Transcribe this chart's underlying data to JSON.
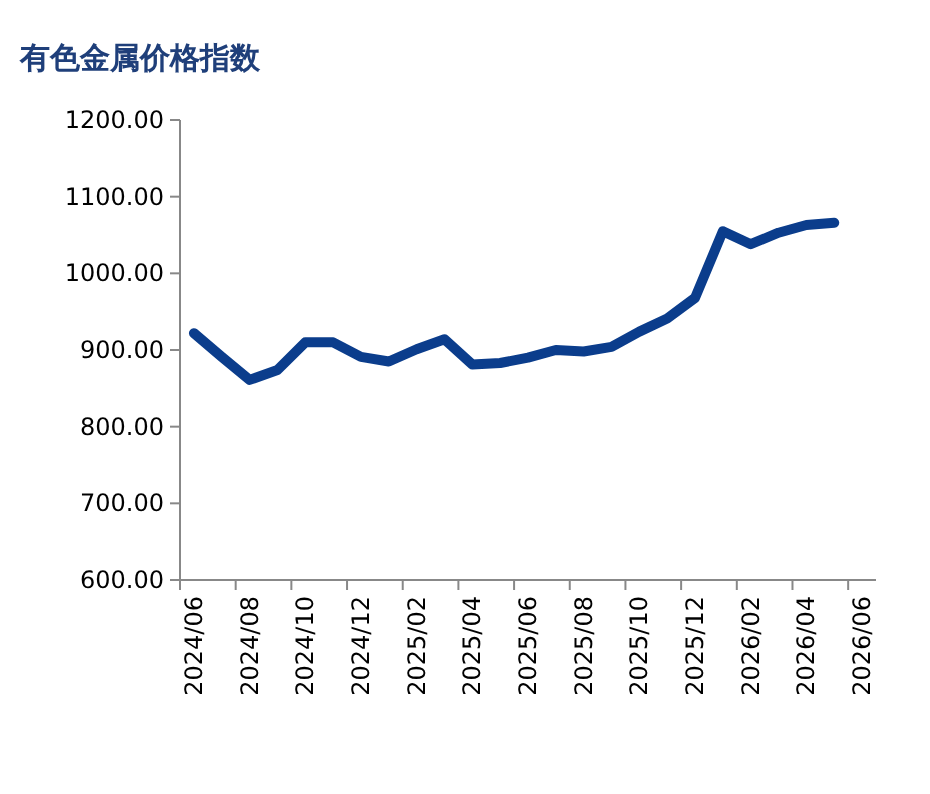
{
  "chart_data": {
    "type": "line",
    "title": "有色金属价格指数",
    "categories": [
      "2024/06",
      null,
      "2024/08",
      null,
      "2024/10",
      null,
      "2024/12",
      null,
      "2025/02",
      null,
      "2025/04",
      null,
      "2025/06",
      null,
      "2025/08",
      null,
      "2025/10",
      null,
      "2025/12",
      null,
      "2026/02",
      null,
      "2026/04",
      null,
      "2026/06"
    ],
    "series": [
      {
        "color": "#0b3d8c",
        "values": [
          922,
          891,
          861,
          874,
          910,
          910,
          891,
          885,
          901,
          914,
          881,
          883,
          890,
          900,
          898,
          904,
          924,
          941,
          968,
          1055,
          1038,
          1053,
          1063,
          1066,
          null
        ]
      }
    ],
    "ylim": [
      600,
      1200
    ],
    "yticks": [
      {
        "value": 600,
        "label": "600.00"
      },
      {
        "value": 700,
        "label": "700.00"
      },
      {
        "value": 800,
        "label": "800.00"
      },
      {
        "value": 900,
        "label": "900.00"
      },
      {
        "value": 1000,
        "label": "1000.00"
      },
      {
        "value": 1100,
        "label": "1100.00"
      },
      {
        "value": 1200,
        "label": "1200.00"
      }
    ],
    "grid": false,
    "marker": "none",
    "line_style": "solid"
  }
}
